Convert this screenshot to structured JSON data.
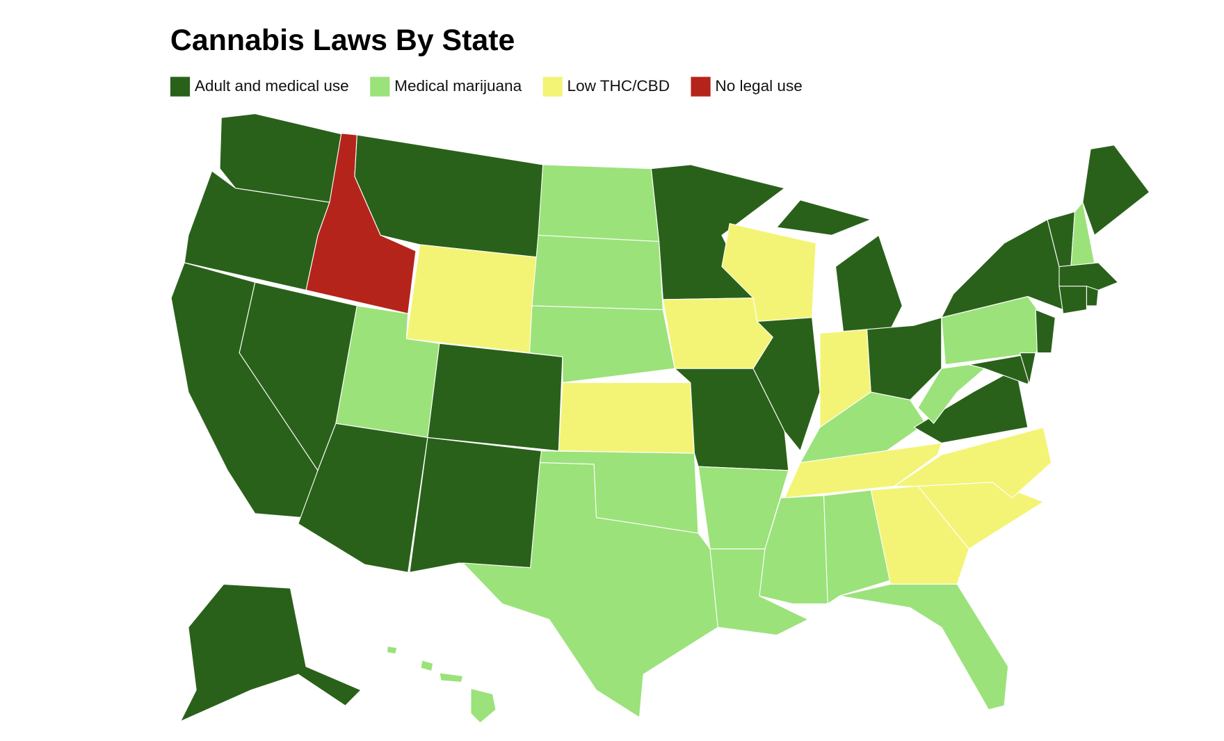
{
  "title": "Cannabis Laws By State",
  "legend": [
    {
      "label": "Adult and medical use",
      "color": "#2a611a"
    },
    {
      "label": "Medical marijuana",
      "color": "#9be27a"
    },
    {
      "label": "Low THC/CBD",
      "color": "#f3f476"
    },
    {
      "label": "No legal use",
      "color": "#b5241b"
    }
  ]
}
